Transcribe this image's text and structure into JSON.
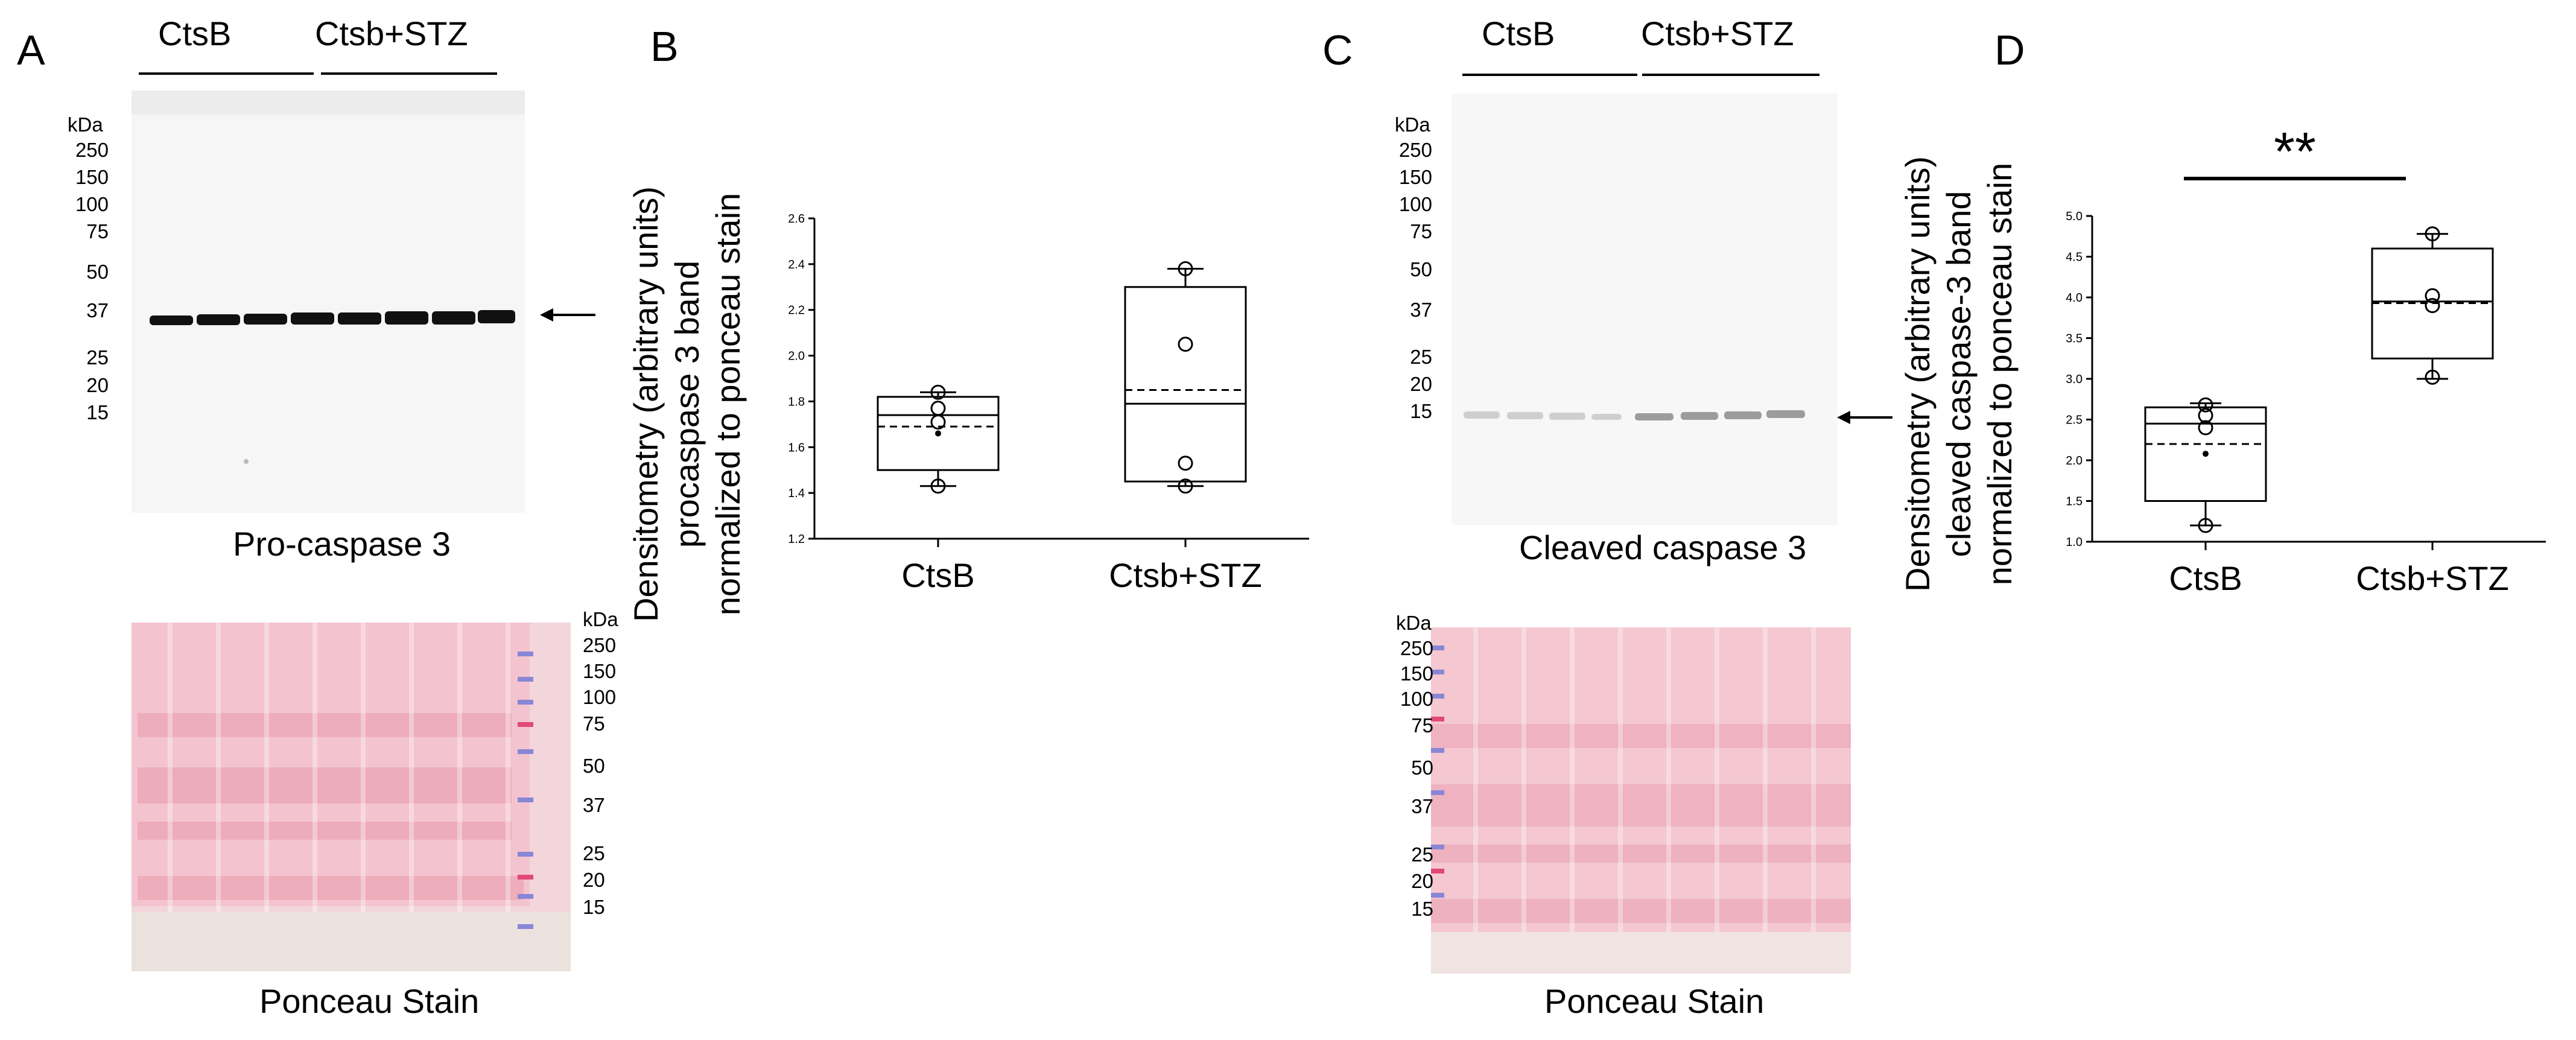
{
  "panels": {
    "A": {
      "letter": "A",
      "groups": [
        "CtsB",
        "Ctsb+STZ"
      ],
      "western_caption": "Pro-caspase 3",
      "ponceau_caption": "Ponceau Stain",
      "kda_unit": "kDa",
      "markers": [
        "250",
        "150",
        "100",
        "75",
        "50",
        "37",
        "25",
        "20",
        "15"
      ],
      "ponceau_markers": [
        "250",
        "150",
        "100",
        "75",
        "50",
        "37",
        "25",
        "20",
        "15"
      ]
    },
    "B": {
      "letter": "B",
      "ylabel": [
        "Densitometry (arbitrary units)",
        "procaspase 3 band",
        "normalized to ponceau stain"
      ]
    },
    "C": {
      "letter": "C",
      "groups": [
        "CtsB",
        "Ctsb+STZ"
      ],
      "western_caption": "Cleaved caspase 3",
      "ponceau_caption": "Ponceau Stain",
      "kda_unit": "kDa",
      "markers": [
        "250",
        "150",
        "100",
        "75",
        "50",
        "37",
        "25",
        "20",
        "15"
      ],
      "ponceau_markers": [
        "250",
        "150",
        "100",
        "75",
        "50",
        "37",
        "25",
        "20",
        "15"
      ]
    },
    "D": {
      "letter": "D",
      "ylabel": [
        "Densitometry (arbitrary units)",
        "cleaved caspase-3 band",
        "normalized to ponceau stain"
      ],
      "significance": "**"
    }
  },
  "chart_data": [
    {
      "type": "box",
      "panel": "B",
      "categories": [
        "CtsB",
        "Ctsb+STZ"
      ],
      "ylim": [
        1.2,
        2.6
      ],
      "yticks": [
        "1.2",
        "1.4",
        "1.6",
        "1.8",
        "2.0",
        "2.2",
        "2.4",
        "2.6"
      ],
      "boxes": [
        {
          "whisker_low": 1.43,
          "q1": 1.5,
          "median": 1.74,
          "mean": 1.69,
          "q3": 1.82,
          "whisker_high": 1.84,
          "points": [
            1.43,
            1.71,
            1.77,
            1.84
          ],
          "mean_dot": 1.66
        },
        {
          "whisker_low": 1.43,
          "q1": 1.45,
          "median": 1.79,
          "mean": 1.85,
          "q3": 2.3,
          "whisker_high": 2.38,
          "points": [
            1.43,
            1.53,
            2.05,
            2.38
          ]
        }
      ]
    },
    {
      "type": "box",
      "panel": "D",
      "categories": [
        "CtsB",
        "Ctsb+STZ"
      ],
      "ylim": [
        1.0,
        5.0
      ],
      "yticks": [
        "1.0",
        "1.5",
        "2.0",
        "2.5",
        "3.0",
        "3.5",
        "4.0",
        "4.5",
        "5.0"
      ],
      "boxes": [
        {
          "whisker_low": 1.2,
          "q1": 1.5,
          "median": 2.45,
          "mean": 2.2,
          "q3": 2.65,
          "whisker_high": 2.7,
          "points": [
            1.2,
            2.4,
            2.55,
            2.68
          ],
          "mean_dot": 2.08
        },
        {
          "whisker_low": 3.0,
          "q1": 3.25,
          "median": 3.95,
          "mean": 3.93,
          "q3": 4.6,
          "whisker_high": 4.78,
          "points": [
            3.02,
            3.9,
            4.02,
            4.78
          ]
        }
      ]
    }
  ]
}
